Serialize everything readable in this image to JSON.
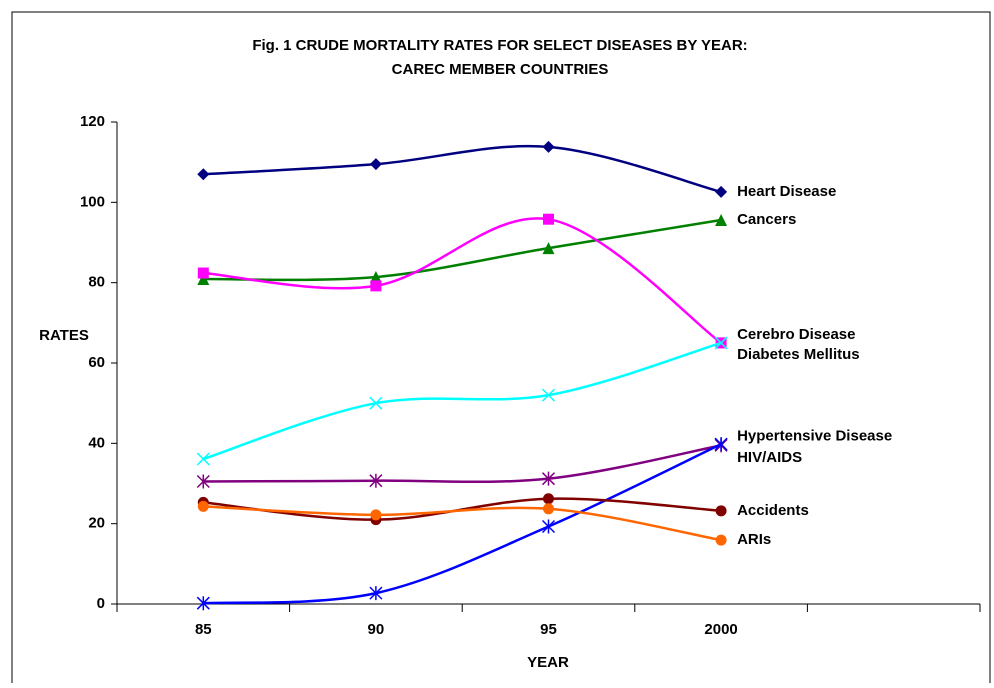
{
  "chart_data": {
    "type": "line",
    "title": [
      "Fig. 1 CRUDE MORTALITY RATES FOR SELECT DISEASES BY YEAR:",
      "CAREC MEMBER COUNTRIES"
    ],
    "x_label": "YEAR",
    "y_label": "RATES",
    "categories": [
      "85",
      "90",
      "95",
      "2000",
      null
    ],
    "ylim": [
      0,
      120
    ],
    "yticks": [
      0,
      20,
      40,
      60,
      80,
      100,
      120
    ],
    "grid": false,
    "series": [
      {
        "name": "Heart Disease",
        "color": "#000080",
        "marker": "diamond",
        "values": [
          107.0,
          109.5,
          113.8,
          102.6,
          null
        ]
      },
      {
        "name": "Cancers",
        "color": "#008000",
        "marker": "triangle",
        "values": [
          80.9,
          81.4,
          88.6,
          95.6,
          null
        ]
      },
      {
        "name": "Cerebro Disease",
        "color": "#ff00ff",
        "marker": "square",
        "values": [
          82.4,
          79.2,
          95.8,
          65.0,
          null
        ]
      },
      {
        "name": "Diabetes Mellitus",
        "color": "#00ffff",
        "marker": "x",
        "values": [
          36.1,
          50.0,
          52.0,
          65.0,
          null
        ]
      },
      {
        "name": "Hypertensive Disease",
        "color": "#800080",
        "marker": "star",
        "values": [
          30.5,
          30.7,
          31.2,
          39.5,
          null
        ]
      },
      {
        "name": "HIV/AIDS",
        "color": "#0000ff",
        "marker": "star",
        "values": [
          0.2,
          2.7,
          19.3,
          39.8,
          null
        ]
      },
      {
        "name": "Accidents",
        "color": "#800000",
        "marker": "circle",
        "values": [
          25.3,
          21.0,
          26.2,
          23.2,
          null
        ]
      },
      {
        "name": "ARIs",
        "color": "#ff6600",
        "marker": "circle",
        "values": [
          24.3,
          22.2,
          23.7,
          15.9,
          null
        ]
      }
    ]
  }
}
